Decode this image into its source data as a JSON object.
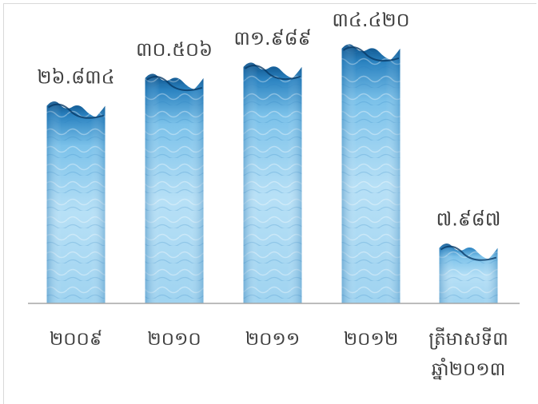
{
  "chart_data": {
    "type": "bar",
    "categories": [
      [
        "២០០៩"
      ],
      [
        "២០១០"
      ],
      [
        "២០១១"
      ],
      [
        "២០១២"
      ],
      [
        "ត្រីមាសទី៣",
        "ឆ្នាំ២០១៣"
      ]
    ],
    "values": [
      26.834,
      30.506,
      31.989,
      34.42,
      7.987
    ],
    "data_labels": [
      "២៦.៨៣៤",
      "៣០.៥០៦",
      "៣១.៩៨៩",
      "៣៤.៤២០",
      "៧.៩៨៧"
    ],
    "ylim": [
      0,
      36
    ],
    "grid": false,
    "legend": "none",
    "title": "",
    "xlabel": "",
    "ylabel": "",
    "colors": {
      "water_deep": "#0c4f86",
      "water_mid": "#4aa3d8",
      "water_light": "#bfe3f7",
      "axis": "#a6a6a6",
      "text": "#404040"
    }
  }
}
